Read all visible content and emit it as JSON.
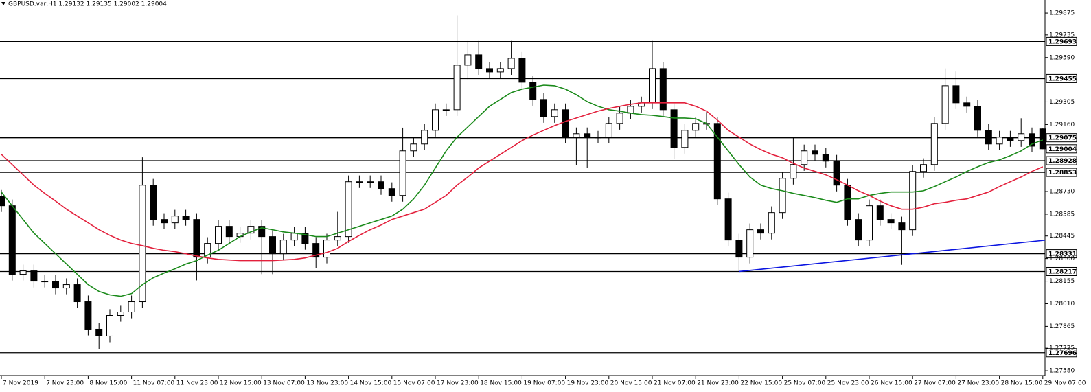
{
  "chart_data": {
    "type": "candlestick",
    "title": "GBPUSD.var,H1  1.29132 1.29135 1.29002 1.29004",
    "categories": [
      "7 Nov 2019",
      null,
      null,
      null,
      "7 Nov 23:00",
      null,
      null,
      null,
      "8 Nov 15:00",
      null,
      null,
      null,
      "11 Nov 07:00",
      null,
      null,
      null,
      "11 Nov 23:00",
      null,
      null,
      null,
      "12 Nov 15:00",
      null,
      null,
      null,
      "13 Nov 07:00",
      null,
      null,
      null,
      "13 Nov 23:00",
      null,
      null,
      null,
      "14 Nov 15:00",
      null,
      null,
      null,
      "15 Nov 07:00",
      null,
      null,
      null,
      "17 Nov 23:00",
      null,
      null,
      null,
      "18 Nov 15:00",
      null,
      null,
      null,
      "19 Nov 07:00",
      null,
      null,
      null,
      "19 Nov 23:00",
      null,
      null,
      null,
      "20 Nov 15:00",
      null,
      null,
      null,
      "21 Nov 07:00",
      null,
      null,
      null,
      "21 Nov 23:00",
      null,
      null,
      null,
      "22 Nov 15:00",
      null,
      null,
      null,
      "25 Nov 07:00",
      null,
      null,
      null,
      "25 Nov 23:00",
      null,
      null,
      null,
      "26 Nov 15:00",
      null,
      null,
      null,
      "27 Nov 07:00",
      null,
      null,
      null,
      "27 Nov 23:00",
      null,
      null,
      null,
      "28 Nov 15:00",
      null,
      null,
      null,
      "29 Nov 07:00"
    ],
    "open": [
      1.287,
      1.28639,
      1.28199,
      1.28221,
      1.28155,
      1.28155,
      1.28111,
      1.28133,
      1.28023,
      1.27847,
      1.27803,
      1.27935,
      1.27957,
      1.28023,
      1.28771,
      1.28551,
      1.28529,
      1.28573,
      1.28551,
      1.28309,
      1.28397,
      1.28507,
      1.28441,
      1.28463,
      1.28507,
      1.28441,
      1.28331,
      1.28419,
      1.28463,
      1.28397,
      1.28309,
      1.28419,
      1.28441,
      1.28793,
      1.28793,
      1.28793,
      1.28749,
      1.28705,
      1.28991,
      1.29035,
      1.29123,
      1.29255,
      1.29255,
      1.29541,
      1.29607,
      1.29519,
      1.29497,
      1.29519,
      1.29585,
      1.29431,
      1.29321,
      1.29211,
      1.29255,
      1.29079,
      1.29101,
      1.29079,
      1.29079,
      1.29167,
      1.29233,
      1.29277,
      1.29299,
      1.29519,
      1.29255,
      1.29013,
      1.29123,
      1.29167,
      1.29167,
      1.28683,
      1.28419,
      1.28309,
      1.28485,
      1.28463,
      1.28595,
      1.28815,
      1.28903,
      1.28991,
      1.28969,
      1.28925,
      1.28771,
      1.28551,
      1.28419,
      1.28639,
      1.28551,
      1.28529,
      1.28485,
      1.28859,
      1.28903,
      1.29167,
      1.29409,
      1.29299,
      1.29277,
      1.29123,
      1.29035,
      1.29079,
      1.29057,
      1.29101,
      1.29132
    ],
    "high": [
      1.2874,
      1.28679,
      1.28261,
      1.28261,
      1.28195,
      1.28195,
      1.28173,
      1.28173,
      1.28063,
      1.27887,
      1.27975,
      1.27997,
      1.28063,
      1.2895,
      1.28811,
      1.28591,
      1.28613,
      1.28613,
      1.28591,
      1.28437,
      1.28547,
      1.28547,
      1.28503,
      1.28547,
      1.28547,
      1.28481,
      1.28459,
      1.28503,
      1.28503,
      1.28437,
      1.28459,
      1.286,
      1.28833,
      1.28833,
      1.28833,
      1.28833,
      1.28789,
      1.2914,
      1.29075,
      1.29163,
      1.29295,
      1.29295,
      1.2986,
      1.297,
      1.297,
      1.29559,
      1.29559,
      1.297,
      1.29625,
      1.29471,
      1.29361,
      1.29295,
      1.29295,
      1.29141,
      1.29141,
      1.29119,
      1.29207,
      1.29273,
      1.29317,
      1.29339,
      1.297,
      1.29559,
      1.29295,
      1.29163,
      1.29207,
      1.2924,
      1.29207,
      1.28723,
      1.28459,
      1.28525,
      1.28525,
      1.28635,
      1.28855,
      1.2908,
      1.29031,
      1.29031,
      1.29009,
      1.28965,
      1.28811,
      1.28591,
      1.28679,
      1.28679,
      1.28591,
      1.28569,
      1.28899,
      1.28943,
      1.29207,
      1.2952,
      1.295,
      1.29339,
      1.29317,
      1.29163,
      1.29119,
      1.29119,
      1.292,
      1.29141,
      1.29135
    ],
    "low": [
      1.28599,
      1.28159,
      1.28159,
      1.28115,
      1.28115,
      1.28071,
      1.28071,
      1.27983,
      1.27807,
      1.2772,
      1.27763,
      1.27895,
      1.27917,
      1.27983,
      1.28511,
      1.28489,
      1.28489,
      1.28511,
      1.2816,
      1.28269,
      1.28357,
      1.28401,
      1.28401,
      1.28423,
      1.282,
      1.282,
      1.28291,
      1.28379,
      1.28357,
      1.2824,
      1.28269,
      1.28379,
      1.28401,
      1.28753,
      1.28753,
      1.28709,
      1.28665,
      1.28665,
      1.28951,
      1.28995,
      1.29083,
      1.29215,
      1.29215,
      1.2945,
      1.29479,
      1.29457,
      1.29457,
      1.29479,
      1.29391,
      1.29281,
      1.29171,
      1.29171,
      1.29039,
      1.289,
      1.2888,
      1.29039,
      1.29039,
      1.29127,
      1.29193,
      1.29237,
      1.29259,
      1.29215,
      1.2894,
      1.28973,
      1.29083,
      1.29127,
      1.28643,
      1.28379,
      1.28217,
      1.28269,
      1.28423,
      1.28423,
      1.28555,
      1.28775,
      1.28863,
      1.28929,
      1.28885,
      1.28731,
      1.28511,
      1.28379,
      1.28379,
      1.28511,
      1.28489,
      1.2826,
      1.28445,
      1.28819,
      1.28863,
      1.29127,
      1.29259,
      1.29237,
      1.29083,
      1.28995,
      1.28995,
      1.29017,
      1.29017,
      1.28981,
      1.29002
    ],
    "close": [
      1.28639,
      1.28199,
      1.28221,
      1.28155,
      1.28155,
      1.28111,
      1.28133,
      1.28023,
      1.27847,
      1.27803,
      1.27935,
      1.27957,
      1.28023,
      1.28771,
      1.28551,
      1.28529,
      1.28573,
      1.28551,
      1.28309,
      1.28397,
      1.28507,
      1.28441,
      1.28463,
      1.28507,
      1.28441,
      1.28331,
      1.28419,
      1.28463,
      1.28397,
      1.28309,
      1.28419,
      1.28441,
      1.28793,
      1.28793,
      1.28793,
      1.28749,
      1.28705,
      1.28991,
      1.29035,
      1.29123,
      1.29255,
      1.29255,
      1.29541,
      1.29607,
      1.29519,
      1.29497,
      1.29519,
      1.29585,
      1.29431,
      1.29321,
      1.29211,
      1.29255,
      1.29079,
      1.29101,
      1.29079,
      1.29079,
      1.29167,
      1.29233,
      1.29277,
      1.29299,
      1.29519,
      1.29255,
      1.29013,
      1.29123,
      1.29167,
      1.29167,
      1.28683,
      1.28419,
      1.28309,
      1.28485,
      1.28463,
      1.28595,
      1.28815,
      1.28903,
      1.28991,
      1.28969,
      1.28925,
      1.28771,
      1.28551,
      1.28419,
      1.28639,
      1.28551,
      1.28529,
      1.28485,
      1.28859,
      1.28903,
      1.29167,
      1.29409,
      1.29299,
      1.29277,
      1.29123,
      1.29035,
      1.29079,
      1.29057,
      1.29101,
      1.29021,
      1.29004
    ],
    "up_color": "#ffffff",
    "down_color": "#000000",
    "series": [
      {
        "color": "#1a8a1a",
        "values": [
          1.28727,
          1.28639,
          1.28551,
          1.28463,
          1.28397,
          1.28331,
          1.28265,
          1.28199,
          1.28133,
          1.28089,
          1.28067,
          1.28058,
          1.28075,
          1.28133,
          1.28177,
          1.28207,
          1.28234,
          1.28265,
          1.28287,
          1.28322,
          1.28353,
          1.28397,
          1.28441,
          1.28471,
          1.28498,
          1.28485,
          1.28471,
          1.28463,
          1.28454,
          1.28441,
          1.28441,
          1.28463,
          1.28485,
          1.28507,
          1.28529,
          1.28551,
          1.28573,
          1.28617,
          1.28683,
          1.28771,
          1.28881,
          1.28991,
          1.29079,
          1.29145,
          1.29211,
          1.29277,
          1.29321,
          1.29365,
          1.29387,
          1.294,
          1.29413,
          1.29409,
          1.29387,
          1.29351,
          1.29307,
          1.29277,
          1.29255,
          1.29246,
          1.29233,
          1.29224,
          1.29219,
          1.29211,
          1.29202,
          1.29202,
          1.29197,
          1.29167,
          1.29079,
          1.28991,
          1.28903,
          1.28823,
          1.28771,
          1.28749,
          1.28735,
          1.28718,
          1.28705,
          1.28691,
          1.28674,
          1.28661,
          1.28683,
          1.28683,
          1.28705,
          1.28718,
          1.28727,
          1.28727,
          1.28727,
          1.28735,
          1.28762,
          1.28793,
          1.28823,
          1.28859,
          1.28889,
          1.28916,
          1.28933,
          1.2896,
          1.28991,
          1.29035,
          1.29061
        ]
      },
      {
        "color": "#e3203c",
        "values": [
          1.28969,
          1.28903,
          1.28837,
          1.28771,
          1.28718,
          1.28669,
          1.28617,
          1.28573,
          1.28529,
          1.28485,
          1.28449,
          1.28419,
          1.28397,
          1.28383,
          1.28366,
          1.28353,
          1.28344,
          1.28331,
          1.28317,
          1.28304,
          1.28295,
          1.28291,
          1.28287,
          1.28287,
          1.28287,
          1.28287,
          1.28291,
          1.28295,
          1.28304,
          1.28322,
          1.28339,
          1.28366,
          1.2841,
          1.28449,
          1.28485,
          1.28515,
          1.28551,
          1.28573,
          1.28595,
          1.28617,
          1.28661,
          1.28705,
          1.28771,
          1.28823,
          1.28881,
          1.28925,
          1.28969,
          1.29013,
          1.29057,
          1.29092,
          1.29123,
          1.29153,
          1.2918,
          1.29202,
          1.29224,
          1.29246,
          1.29263,
          1.29277,
          1.2929,
          1.29299,
          1.29299,
          1.29299,
          1.29299,
          1.29299,
          1.29277,
          1.29246,
          1.29189,
          1.29123,
          1.29079,
          1.29035,
          1.28999,
          1.28969,
          1.28947,
          1.28911,
          1.28881,
          1.28859,
          1.28837,
          1.28806,
          1.28771,
          1.28735,
          1.28705,
          1.28669,
          1.28639,
          1.28617,
          1.28617,
          1.2863,
          1.28652,
          1.28661,
          1.28674,
          1.28683,
          1.28705,
          1.28727,
          1.28762,
          1.28793,
          1.28823,
          1.28859,
          1.28889
        ]
      }
    ],
    "levels": [
      1.29693,
      1.29455,
      1.29075,
      1.28928,
      1.28853,
      1.28331,
      1.28217,
      1.27696
    ],
    "level_color": "#000000",
    "last_price": 1.29004,
    "trendline": {
      "color": "#0a14e0",
      "points": [
        {
          "index": 68,
          "value": 1.28217
        },
        {
          "index": 84,
          "value": 1.28331
        }
      ]
    },
    "ylim": [
      1.27554,
      1.29959
    ],
    "yticks": [
      1.29875,
      1.29735,
      {
        "value": 1.2959,
        "label": "1.29590"
      },
      1.29305,
      {
        "value": 1.2916,
        "label": "1.29160"
      },
      {
        "value": 1.2873,
        "label": "1.28730"
      },
      1.28585,
      1.28445,
      {
        "value": 1.283,
        "label": "1.28300"
      },
      1.28155,
      {
        "value": 1.2801,
        "label": "1.28010"
      },
      1.27865,
      1.27725,
      {
        "value": 1.2758,
        "label": "1.27580"
      }
    ],
    "grid": false
  }
}
